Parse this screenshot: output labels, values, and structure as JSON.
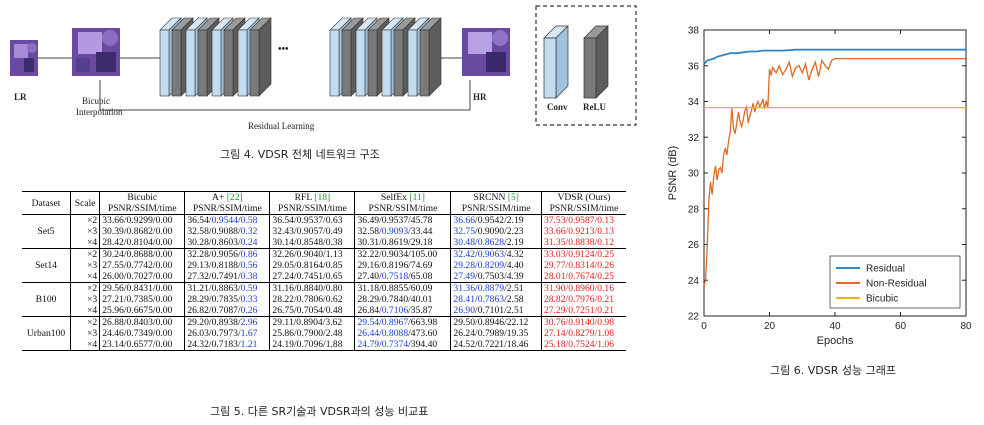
{
  "diagram": {
    "lr_label": "LR",
    "bicubic_label_1": "Bicubic",
    "bicubic_label_2": "Interpolation",
    "hr_label": "HR",
    "dots": "•••",
    "residual_label": "Residual Learning",
    "legend_conv": "Conv",
    "legend_relu": "ReLU",
    "colors": {
      "conv": "#b9d6ea",
      "relu": "#7a7a7a",
      "patch": "#6a4aa0"
    }
  },
  "fig4_caption": "그림 4. VDSR 전체 네트워크 구조",
  "fig5_caption": "그림 5. 다른 SR기술과 VDSR과의 성능 비교표",
  "fig6_caption": "그림 6. VDSR 성능 그래프",
  "table": {
    "head1": [
      "Dataset",
      "Scale",
      "Bicubic",
      "A+ ",
      "RFL ",
      "SelfEx ",
      "SRCNN ",
      "VDSR (Ours)"
    ],
    "refs": [
      "",
      "",
      "",
      "[22]",
      "[18]",
      "[11]",
      "[5]",
      ""
    ],
    "head2": "PSNR/SSIM/time",
    "groups": [
      {
        "name": "Set5",
        "rows": [
          [
            "×2",
            "33.66/0.9299/0.00",
            "36.54/0.9544/0.58",
            "36.54/0.9537/0.63",
            "36.49/0.9537/45.78",
            "36.66/0.9542/2.19",
            "37.53/0.9587/0.13"
          ],
          [
            "×3",
            "30.39/0.8682/0.00",
            "32.58/0.9088/0.32",
            "32.43/0.9057/0.49",
            "32.58/0.9093/33.44",
            "32.75/0.9090/2.23",
            "33.66/0.9213/0.13"
          ],
          [
            "×4",
            "28.42/0.8104/0.00",
            "30.28/0.8603/0.24",
            "30.14/0.8548/0.38",
            "30.31/0.8619/29.18",
            "30.48/0.8628/2.19",
            "31.35/0.8838/0.12"
          ]
        ]
      },
      {
        "name": "Set14",
        "rows": [
          [
            "×2",
            "30.24/0.8688/0.00",
            "32.28/0.9056/0.86",
            "32.26/0.9040/1.13",
            "32.22/0.9034/105.00",
            "32.42/0.9063/4.32",
            "33.03/0.9124/0.25"
          ],
          [
            "×3",
            "27.55/0.7742/0.00",
            "29.13/0.8188/0.56",
            "29.05/0.8164/0.85",
            "29.16/0.8196/74.69",
            "29.28/0.8209/4.40",
            "29.77/0.8314/0.26"
          ],
          [
            "×4",
            "26.00/0.7027/0.00",
            "27.32/0.7491/0.38",
            "27.24/0.7451/0.65",
            "27.40/0.7518/65.08",
            "27.49/0.7503/4.39",
            "28.01/0.7674/0.25"
          ]
        ]
      },
      {
        "name": "B100",
        "rows": [
          [
            "×2",
            "29.56/0.8431/0.00",
            "31.21/0.8863/0.59",
            "31.16/0.8840/0.80",
            "31.18/0.8855/60.09",
            "31.36/0.8879/2.51",
            "31.90/0.8960/0.16"
          ],
          [
            "×3",
            "27.21/0.7385/0.00",
            "28.29/0.7835/0.33",
            "28.22/0.7806/0.62",
            "28.29/0.7840/40.01",
            "28.41/0.7863/2.58",
            "28.82/0.7976/0.21"
          ],
          [
            "×4",
            "25.96/0.6675/0.00",
            "26.82/0.7087/0.26",
            "26.75/0.7054/0.48",
            "26.84/0.7106/35.87",
            "26.90/0.7101/2.51",
            "27.29/0.7251/0.21"
          ]
        ]
      },
      {
        "name": "Urban100",
        "rows": [
          [
            "×2",
            "26.88/0.8403/0.00",
            "29.20/0.8938/2.96",
            "29.11/0.8904/3.62",
            "29.54/0.8967/663.98",
            "29.50/0.8946/22.12",
            "30.76/0.9140/0.98"
          ],
          [
            "×3",
            "24.46/0.7349/0.00",
            "26.03/0.7973/1.67",
            "25.86/0.7900/2.48",
            "26.44/0.8088/473.60",
            "26.24/0.7989/19.35",
            "27.14/0.8279/1.08"
          ],
          [
            "×4",
            "23.14/0.6577/0.00",
            "24.32/0.7183/1.21",
            "24.19/0.7096/1.88",
            "24.79/0.7374/394.40",
            "24.52/0.7221/18.46",
            "25.18/0.7524/1.06"
          ]
        ]
      }
    ],
    "highlight_colors": {
      "best": "#e0201b",
      "second": "#1a3fd6",
      "ref": "#1f9f2a"
    }
  },
  "chart_data": {
    "type": "line",
    "xlabel": "Epochs",
    "ylabel": "PSNR (dB)",
    "xlim": [
      0,
      80
    ],
    "ylim": [
      22,
      38
    ],
    "xticks": [
      0,
      20,
      40,
      60,
      80
    ],
    "yticks": [
      22,
      24,
      26,
      28,
      30,
      32,
      34,
      36,
      38
    ],
    "grid": false,
    "legend": "bottom-right",
    "series": [
      {
        "name": "Residual",
        "color": "#2e86c9",
        "x": [
          0,
          1,
          2,
          3,
          4,
          6,
          8,
          10,
          12,
          14,
          16,
          18,
          20,
          24,
          28,
          32,
          36,
          40,
          50,
          60,
          70,
          80
        ],
        "y": [
          36.1,
          36.3,
          36.35,
          36.4,
          36.5,
          36.6,
          36.7,
          36.7,
          36.75,
          36.8,
          36.8,
          36.85,
          36.85,
          36.85,
          36.9,
          36.9,
          36.9,
          36.9,
          36.9,
          36.9,
          36.9,
          36.9
        ]
      },
      {
        "name": "Non-Residual",
        "color": "#e06a1f",
        "x": [
          0,
          0.5,
          1,
          1.5,
          2,
          2.5,
          3,
          3.5,
          4,
          4.5,
          5,
          5.5,
          6,
          6.5,
          7,
          7.5,
          8,
          8.5,
          9,
          9.5,
          10,
          10.5,
          11,
          11.5,
          12,
          12.5,
          13,
          13.5,
          14,
          14.5,
          15,
          15.5,
          16,
          16.5,
          17,
          17.5,
          18,
          18.5,
          19,
          19.5,
          20,
          20.5,
          21,
          22,
          23,
          24,
          25,
          26,
          27,
          28,
          29,
          30,
          31,
          32,
          33,
          34,
          35,
          36,
          37,
          38,
          39,
          40,
          45,
          50,
          55,
          60,
          65,
          70,
          75,
          80
        ],
        "y": [
          23.7,
          24.0,
          26.0,
          28.5,
          29.5,
          28.8,
          29.8,
          30.4,
          29.6,
          30.2,
          30.3,
          30.0,
          31.0,
          31.4,
          31.0,
          31.8,
          32.3,
          33.6,
          32.5,
          32.2,
          32.8,
          33.4,
          32.9,
          32.6,
          33.0,
          33.5,
          33.7,
          32.8,
          33.2,
          33.5,
          33.9,
          33.4,
          33.8,
          34.0,
          33.7,
          33.9,
          34.1,
          33.6,
          34.0,
          33.7,
          35.8,
          35.5,
          35.9,
          35.6,
          36.0,
          35.5,
          35.8,
          36.2,
          35.4,
          35.9,
          36.0,
          35.6,
          36.1,
          35.2,
          35.8,
          36.2,
          35.4,
          36.3,
          36.0,
          35.8,
          36.3,
          36.4,
          36.4,
          36.4,
          36.4,
          36.4,
          36.4,
          36.4,
          36.4,
          36.4
        ]
      },
      {
        "name": "Bicubic",
        "color": "#e8b12a",
        "x": [
          0,
          80
        ],
        "y": [
          33.66,
          33.66
        ]
      }
    ]
  }
}
